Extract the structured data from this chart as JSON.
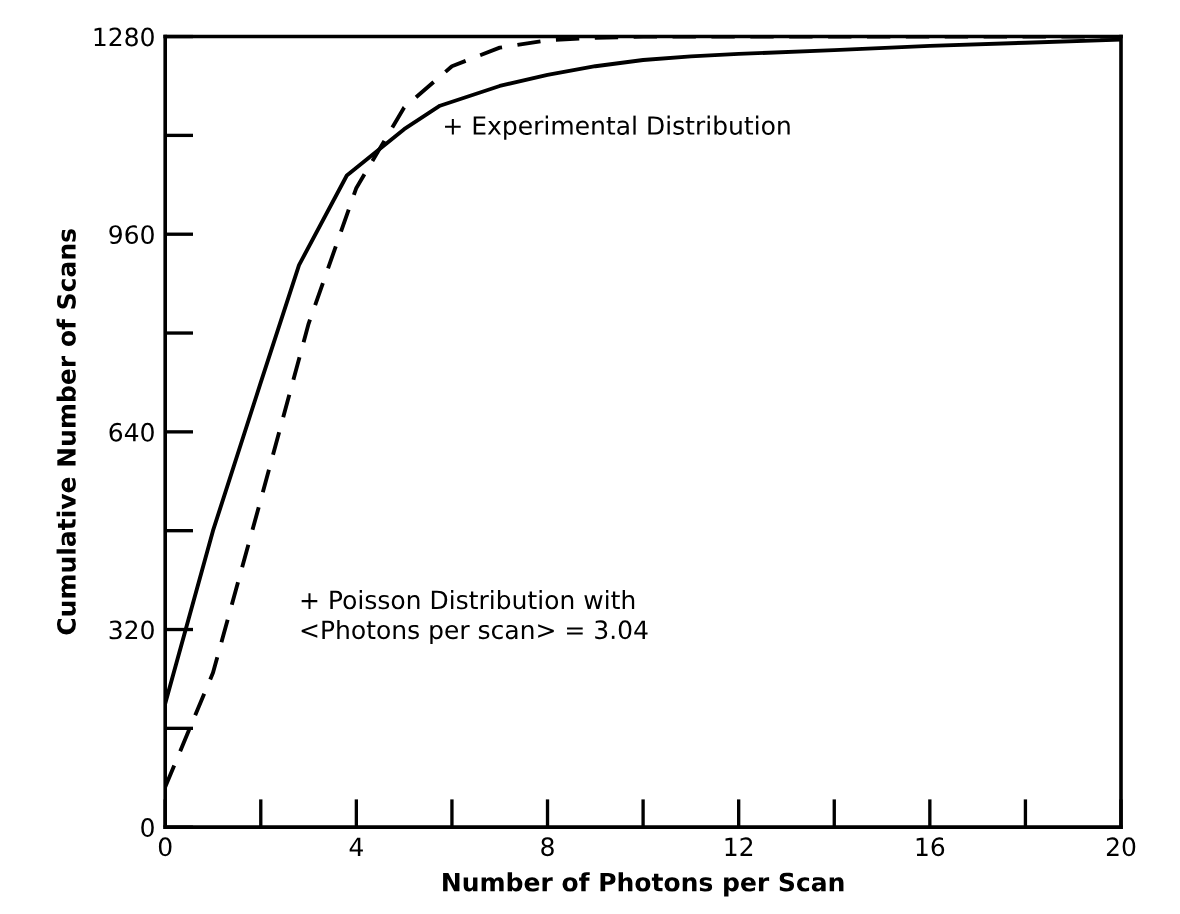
{
  "chart_data": {
    "type": "line",
    "xlabel": "Number of Photons per Scan",
    "ylabel": "Cumulative Number of Scans",
    "xlim": [
      0,
      20
    ],
    "ylim": [
      0,
      1280
    ],
    "xticks": [
      0,
      {
        "value": 2,
        "label": null
      },
      4,
      {
        "value": 6,
        "label": null
      },
      8,
      {
        "value": 10,
        "label": null
      },
      12,
      {
        "value": 14,
        "label": null
      },
      16,
      {
        "value": 18,
        "label": null
      },
      20
    ],
    "yticks": [
      0,
      {
        "value": 160,
        "label": null
      },
      320,
      {
        "value": 480,
        "label": null
      },
      640,
      {
        "value": 800,
        "label": null
      },
      960,
      {
        "value": 1120,
        "label": null
      },
      1280
    ],
    "grid": false,
    "marker": "none",
    "series": [
      {
        "color": "#000000",
        "line_style": "solid",
        "x": [
          0,
          1,
          2,
          2.8,
          3.8,
          5,
          5.75,
          7,
          8,
          9,
          10,
          11,
          12,
          14,
          16,
          18,
          20
        ],
        "values": [
          200,
          480,
          720,
          910,
          1055,
          1130,
          1168,
          1200,
          1218,
          1232,
          1242,
          1248,
          1252,
          1258,
          1265,
          1270,
          1275
        ]
      },
      {
        "color": "#000000",
        "line_style": "dashed",
        "x": [
          0,
          1,
          2,
          3,
          4,
          5,
          6,
          7,
          8,
          9,
          10,
          20
        ],
        "values": [
          65,
          250,
          530,
          815,
          1035,
          1165,
          1232,
          1262,
          1274,
          1278,
          1280,
          1280
        ]
      }
    ],
    "annotations": [
      "+ Experimental Distribution",
      "+ Poisson Distribution with\n<Photons per scan> = 3.04"
    ]
  }
}
